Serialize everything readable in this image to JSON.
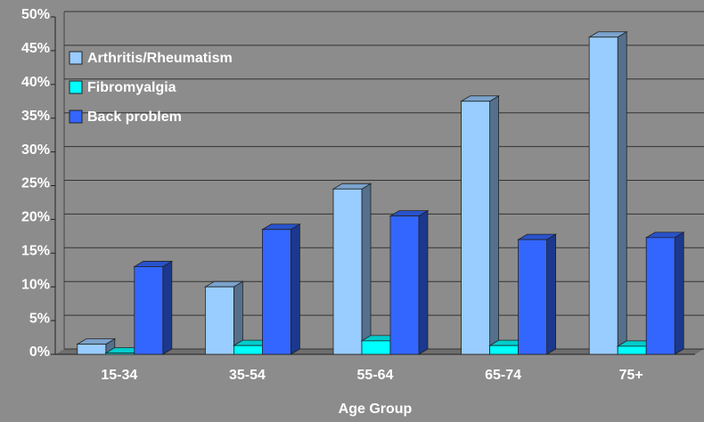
{
  "chart_data": {
    "type": "bar3d",
    "x_label": "Age Group",
    "categories": [
      "15-34",
      "35-54",
      "55-64",
      "65-74",
      "75+"
    ],
    "series": [
      {
        "name": "Arthritis/Rheumatism",
        "color": "#99ccff",
        "values": [
          1.5,
          10,
          24.5,
          37.5,
          47
        ]
      },
      {
        "name": "Fibromyalgia",
        "color": "#00ffff",
        "values": [
          0.2,
          1.3,
          2,
          1.3,
          1.2
        ]
      },
      {
        "name": "Back problem",
        "color": "#3366ff",
        "values": [
          13,
          18.5,
          20.5,
          17,
          17.3
        ]
      }
    ],
    "ylim": [
      0,
      50
    ],
    "yticks": [
      {
        "value": 0,
        "label": "0%"
      },
      {
        "value": 5,
        "label": "5%"
      },
      {
        "value": 10,
        "label": "10%"
      },
      {
        "value": 15,
        "label": "15%"
      },
      {
        "value": 20,
        "label": "20%"
      },
      {
        "value": 25,
        "label": "25%"
      },
      {
        "value": 30,
        "label": "30%"
      },
      {
        "value": 35,
        "label": "35%"
      },
      {
        "value": 40,
        "label": "40%"
      },
      {
        "value": 45,
        "label": "45%"
      },
      {
        "value": 50,
        "label": "50%"
      }
    ],
    "grid": true,
    "legend": "upper left"
  }
}
